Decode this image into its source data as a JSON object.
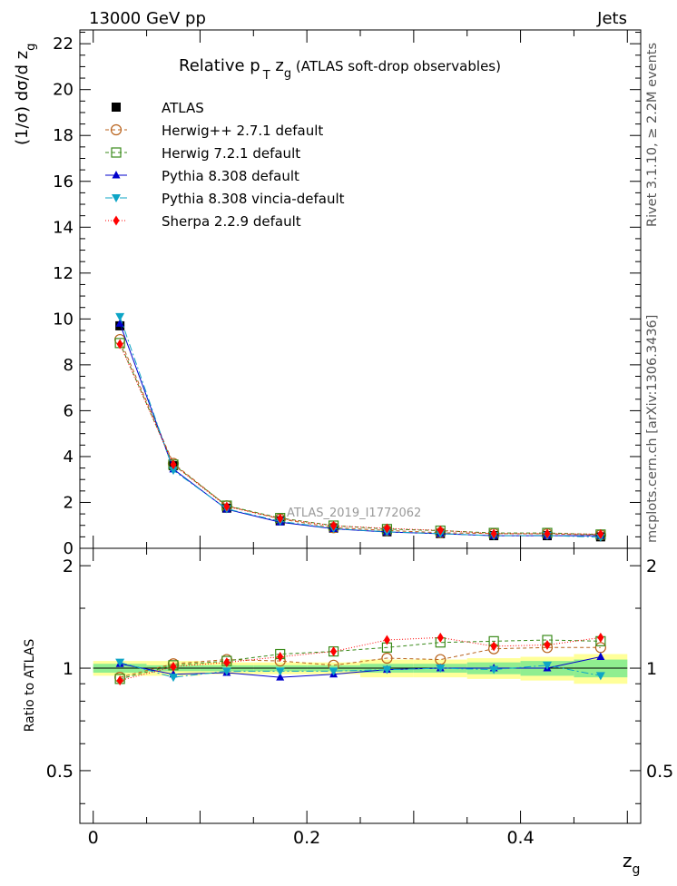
{
  "header": {
    "left": "13000 GeV pp",
    "right": "Jets"
  },
  "side_text": {
    "upper": "Rivet 3.1.10, ≥ 2.2M events",
    "lower": "mcplots.cern.ch [arXiv:1306.3436]"
  },
  "watermark": "ATLAS_2019_I1772062",
  "chart_data": [
    {
      "type": "line",
      "title_parts": {
        "a": "Relative p",
        "sub1": "T",
        "b": " z",
        "sub2": "g",
        "c": " (ATLAS soft-drop observables)"
      },
      "ylabel_parts": {
        "a": "(1/σ) dσ/d z",
        "sub": "g"
      },
      "xlim": [
        -0.0125,
        0.5125
      ],
      "ylim": [
        0,
        22.6
      ],
      "yticks": [
        0,
        2,
        4,
        6,
        8,
        10,
        12,
        14,
        16,
        18,
        20,
        22
      ],
      "ytick_labels": [
        "0",
        "2",
        "4",
        "6",
        "8",
        "10",
        "12",
        "14",
        "16",
        "18",
        "20",
        "22"
      ],
      "x": [
        0.025,
        0.075,
        0.125,
        0.175,
        0.225,
        0.275,
        0.325,
        0.375,
        0.425,
        0.475
      ],
      "series": [
        {
          "name": "ATLAS",
          "color": "#000000",
          "marker": "square-filled",
          "dash": "none",
          "values": [
            9.7,
            3.6,
            1.75,
            1.2,
            0.88,
            0.72,
            0.64,
            0.55,
            0.55,
            0.5
          ]
        },
        {
          "name": "Herwig++ 2.7.1 default",
          "color": "#b8621b",
          "marker": "circle-open",
          "dash": "4,3",
          "values": [
            9.1,
            3.7,
            1.85,
            1.28,
            0.9,
            0.78,
            0.68,
            0.64,
            0.63,
            0.58
          ]
        },
        {
          "name": "Herwig 7.2.1 default",
          "color": "#3a8a1a",
          "marker": "square-open",
          "dash": "4,3",
          "values": [
            8.95,
            3.65,
            1.86,
            1.32,
            0.99,
            0.84,
            0.77,
            0.67,
            0.67,
            0.6
          ]
        },
        {
          "name": "Pythia 8.308 default",
          "color": "#0000cc",
          "marker": "triangle-up",
          "dash": "none",
          "values": [
            9.8,
            3.45,
            1.7,
            1.14,
            0.85,
            0.71,
            0.64,
            0.55,
            0.55,
            0.55
          ]
        },
        {
          "name": "Pythia 8.308 vincia-default",
          "color": "#0ea5c6",
          "marker": "triangle-down",
          "dash": "8,3,2,3",
          "values": [
            10.1,
            3.4,
            1.72,
            1.18,
            0.86,
            0.72,
            0.64,
            0.55,
            0.56,
            0.48
          ]
        },
        {
          "name": "Sherpa 2.2.9 default",
          "color": "#ff0000",
          "marker": "diamond",
          "dash": "1,2",
          "values": [
            8.9,
            3.65,
            1.82,
            1.3,
            0.98,
            0.87,
            0.78,
            0.64,
            0.64,
            0.62
          ]
        }
      ]
    },
    {
      "type": "line",
      "ylabel": "Ratio to ATLAS",
      "xlabel_parts": {
        "a": "z",
        "sub": "g"
      },
      "xlim": [
        -0.0125,
        0.5125
      ],
      "ylim": [
        0.35,
        2.25
      ],
      "ylog": true,
      "yticks": [
        0.5,
        1,
        2
      ],
      "ytick_labels": [
        "0.5",
        "1",
        "2"
      ],
      "xticks": [
        0,
        0.2,
        0.4
      ],
      "xtick_labels": [
        "0",
        "0.2",
        "0.4"
      ],
      "x": [
        0.025,
        0.075,
        0.125,
        0.175,
        0.225,
        0.275,
        0.325,
        0.375,
        0.425,
        0.475
      ],
      "bands": {
        "inner": [
          0.03,
          0.02,
          0.02,
          0.02,
          0.02,
          0.03,
          0.03,
          0.04,
          0.05,
          0.06
        ],
        "outer": [
          0.05,
          0.05,
          0.04,
          0.04,
          0.04,
          0.06,
          0.06,
          0.07,
          0.08,
          0.1
        ],
        "inner_color": "#90ee90",
        "outer_color": "#ffff99"
      },
      "series": [
        {
          "name": "Herwig++ 2.7.1 default",
          "color": "#b8621b",
          "marker": "circle-open",
          "dash": "4,3",
          "values": [
            0.94,
            1.03,
            1.06,
            1.05,
            1.02,
            1.07,
            1.06,
            1.14,
            1.15,
            1.15
          ]
        },
        {
          "name": "Herwig 7.2.1 default",
          "color": "#3a8a1a",
          "marker": "square-open",
          "dash": "4,3",
          "values": [
            0.93,
            1.02,
            1.05,
            1.1,
            1.12,
            1.15,
            1.19,
            1.2,
            1.21,
            1.2
          ]
        },
        {
          "name": "Pythia 8.308 default",
          "color": "#0000cc",
          "marker": "triangle-up",
          "dash": "none",
          "values": [
            1.03,
            0.96,
            0.97,
            0.94,
            0.96,
            0.99,
            1.0,
            1.0,
            1.0,
            1.08
          ]
        },
        {
          "name": "Pythia 8.308 vincia-default",
          "color": "#0ea5c6",
          "marker": "triangle-down",
          "dash": "8,3,2,3",
          "values": [
            1.04,
            0.94,
            0.98,
            0.98,
            0.98,
            0.99,
            1.0,
            0.99,
            1.02,
            0.95
          ]
        },
        {
          "name": "Sherpa 2.2.9 default",
          "color": "#ff0000",
          "marker": "diamond",
          "dash": "1,2",
          "values": [
            0.92,
            1.01,
            1.04,
            1.08,
            1.12,
            1.21,
            1.23,
            1.16,
            1.17,
            1.23
          ]
        }
      ]
    }
  ]
}
